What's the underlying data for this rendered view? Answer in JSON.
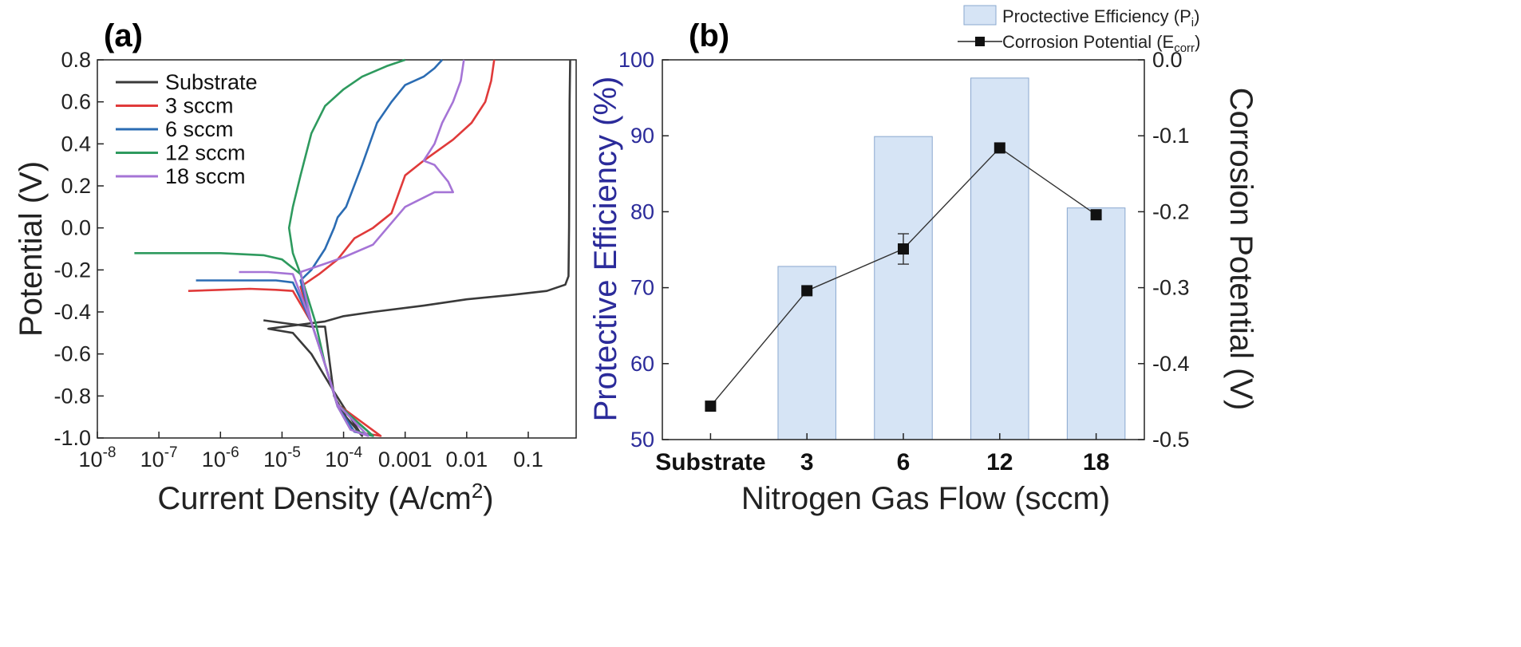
{
  "chart_data": [
    {
      "panel": "(a)",
      "type": "line",
      "xlabel": "Current Density (A/cm",
      "xlabel_sup": "2",
      "xlabel_end": ")",
      "ylabel": "Potential (V)",
      "xscale": "log",
      "xlim": [
        1e-08,
        0.6
      ],
      "ylim": [
        -1.0,
        0.8
      ],
      "xticks": [
        {
          "base": "10",
          "exp": "-8",
          "value": 1e-08
        },
        {
          "base": "10",
          "exp": "-7",
          "value": 1e-07
        },
        {
          "base": "10",
          "exp": "-6",
          "value": 1e-06
        },
        {
          "base": "10",
          "exp": "-5",
          "value": 1e-05
        },
        {
          "base": "10",
          "exp": "-4",
          "value": 0.0001
        }
      ],
      "xticks_plain": [
        {
          "label": "0.001",
          "value": 0.001
        },
        {
          "label": "0.01",
          "value": 0.01
        },
        {
          "label": "0.1",
          "value": 0.1
        }
      ],
      "yticks": [
        {
          "label": "0.8",
          "value": 0.8
        },
        {
          "label": "0.6",
          "value": 0.6
        },
        {
          "label": "0.4",
          "value": 0.4
        },
        {
          "label": "0.2",
          "value": 0.2
        },
        {
          "label": "0.0",
          "value": 0.0
        },
        {
          "label": "-0.2",
          "value": -0.2
        },
        {
          "label": "-0.4",
          "value": -0.4
        },
        {
          "label": "-0.6",
          "value": -0.6
        },
        {
          "label": "-0.8",
          "value": -0.8
        },
        {
          "label": "-1.0",
          "value": -1.0
        }
      ],
      "legend_position": "top-left",
      "series": [
        {
          "name": "Substrate",
          "color": "#3a3a3a",
          "points": [
            [
              5e-06,
              -0.44
            ],
            [
              1.2e-05,
              -0.455
            ],
            [
              3e-05,
              -0.47
            ],
            [
              5e-05,
              -0.47
            ],
            [
              7e-05,
              -0.8
            ],
            [
              0.00011,
              -0.9
            ],
            [
              0.0002,
              -0.99
            ],
            [
              7e-05,
              -0.78
            ],
            [
              3e-05,
              -0.6
            ],
            [
              1.5e-05,
              -0.5
            ],
            [
              6e-06,
              -0.48
            ],
            [
              5e-05,
              -0.445
            ],
            [
              0.0001,
              -0.42
            ],
            [
              0.0003,
              -0.4
            ],
            [
              0.002,
              -0.37
            ],
            [
              0.01,
              -0.34
            ],
            [
              0.05,
              -0.32
            ],
            [
              0.2,
              -0.3
            ],
            [
              0.4,
              -0.27
            ],
            [
              0.45,
              -0.23
            ],
            [
              0.46,
              0.0
            ],
            [
              0.47,
              0.6
            ],
            [
              0.48,
              0.8
            ]
          ]
        },
        {
          "name": "3 sccm",
          "color": "#e03a3a",
          "points": [
            [
              3e-07,
              -0.3
            ],
            [
              1e-06,
              -0.295
            ],
            [
              3e-06,
              -0.29
            ],
            [
              8e-06,
              -0.295
            ],
            [
              1.5e-05,
              -0.3
            ],
            [
              3e-05,
              -0.45
            ],
            [
              5e-05,
              -0.65
            ],
            [
              8e-05,
              -0.85
            ],
            [
              0.00015,
              -0.97
            ],
            [
              0.0004,
              -0.99
            ],
            [
              8e-05,
              -0.84
            ],
            [
              5e-05,
              -0.65
            ],
            [
              3e-05,
              -0.45
            ],
            [
              2e-05,
              -0.28
            ],
            [
              4e-05,
              -0.22
            ],
            [
              8e-05,
              -0.15
            ],
            [
              0.00015,
              -0.05
            ],
            [
              0.0003,
              0.0
            ],
            [
              0.0006,
              0.07
            ],
            [
              0.001,
              0.25
            ],
            [
              0.002,
              0.32
            ],
            [
              0.006,
              0.42
            ],
            [
              0.012,
              0.5
            ],
            [
              0.02,
              0.6
            ],
            [
              0.025,
              0.7
            ],
            [
              0.028,
              0.8
            ]
          ]
        },
        {
          "name": "6 sccm",
          "color": "#2b6cb3",
          "points": [
            [
              4e-07,
              -0.25
            ],
            [
              2e-06,
              -0.25
            ],
            [
              8e-06,
              -0.25
            ],
            [
              1.5e-05,
              -0.26
            ],
            [
              3e-05,
              -0.45
            ],
            [
              5e-05,
              -0.65
            ],
            [
              8e-05,
              -0.85
            ],
            [
              0.00015,
              -0.97
            ],
            [
              0.0003,
              -0.99
            ],
            [
              8e-05,
              -0.84
            ],
            [
              5e-05,
              -0.65
            ],
            [
              3e-05,
              -0.45
            ],
            [
              2e-05,
              -0.25
            ],
            [
              3e-05,
              -0.2
            ],
            [
              5e-05,
              -0.1
            ],
            [
              7e-05,
              0.0
            ],
            [
              8e-05,
              0.05
            ],
            [
              0.00011,
              0.1
            ],
            [
              0.0002,
              0.3
            ],
            [
              0.00035,
              0.5
            ],
            [
              0.0006,
              0.6
            ],
            [
              0.001,
              0.68
            ],
            [
              0.002,
              0.72
            ],
            [
              0.003,
              0.76
            ],
            [
              0.004,
              0.8
            ]
          ]
        },
        {
          "name": "12 sccm",
          "color": "#2e9a5e",
          "points": [
            [
              4e-08,
              -0.12
            ],
            [
              2e-07,
              -0.12
            ],
            [
              1e-06,
              -0.12
            ],
            [
              5e-06,
              -0.13
            ],
            [
              1e-05,
              -0.15
            ],
            [
              2e-05,
              -0.22
            ],
            [
              3.5e-05,
              -0.45
            ],
            [
              5e-05,
              -0.65
            ],
            [
              8e-05,
              -0.85
            ],
            [
              0.00013,
              -0.96
            ],
            [
              0.0003,
              -0.99
            ],
            [
              8e-05,
              -0.84
            ],
            [
              5e-05,
              -0.65
            ],
            [
              3.5e-05,
              -0.45
            ],
            [
              2e-05,
              -0.22
            ],
            [
              1.5e-05,
              -0.12
            ],
            [
              1.3e-05,
              0.0
            ],
            [
              1.5e-05,
              0.1
            ],
            [
              2e-05,
              0.25
            ],
            [
              3e-05,
              0.45
            ],
            [
              5e-05,
              0.58
            ],
            [
              0.0001,
              0.66
            ],
            [
              0.0002,
              0.72
            ],
            [
              0.0005,
              0.77
            ],
            [
              0.001,
              0.8
            ]
          ]
        },
        {
          "name": "18 sccm",
          "color": "#a574d6",
          "points": [
            [
              2e-06,
              -0.21
            ],
            [
              6e-06,
              -0.21
            ],
            [
              1.5e-05,
              -0.22
            ],
            [
              3e-05,
              -0.45
            ],
            [
              5e-05,
              -0.65
            ],
            [
              8e-05,
              -0.85
            ],
            [
              0.00013,
              -0.96
            ],
            [
              0.00025,
              -0.99
            ],
            [
              8e-05,
              -0.84
            ],
            [
              5e-05,
              -0.65
            ],
            [
              3e-05,
              -0.45
            ],
            [
              2e-05,
              -0.21
            ],
            [
              4e-05,
              -0.18
            ],
            [
              0.0001,
              -0.14
            ],
            [
              0.0003,
              -0.08
            ],
            [
              0.001,
              0.1
            ],
            [
              0.003,
              0.17
            ],
            [
              0.006,
              0.17
            ],
            [
              0.005,
              0.22
            ],
            [
              0.003,
              0.3
            ],
            [
              0.002,
              0.32
            ],
            [
              0.003,
              0.4
            ],
            [
              0.004,
              0.5
            ],
            [
              0.006,
              0.6
            ],
            [
              0.008,
              0.7
            ],
            [
              0.009,
              0.8
            ]
          ]
        }
      ]
    },
    {
      "panel": "(b)",
      "type": "bar",
      "xlabel": "Nitrogen Gas Flow (sccm)",
      "ylabel": "Protective Efficiency (%)",
      "y2label": "Corrosion Potential (V)",
      "categories": [
        "Substrate",
        "3",
        "6",
        "12",
        "18"
      ],
      "ylim": [
        50,
        100
      ],
      "y2lim": [
        -0.5,
        0.0
      ],
      "yticks": [
        "50",
        "60",
        "70",
        "80",
        "90",
        "100"
      ],
      "y2ticks": [
        "-0.5",
        "-0.4",
        "-0.3",
        "-0.2",
        "-0.1",
        "0.0"
      ],
      "bar_series": {
        "name": "Proctective Efficiency (P",
        "name_sub": "i",
        "name_end": ")",
        "values": [
          null,
          72.8,
          89.9,
          97.6,
          80.5
        ],
        "color": "#d6e4f5"
      },
      "line_series": {
        "name": "Corrosion Potential (E",
        "name_sub": "corr",
        "name_end": ")",
        "values": [
          -0.456,
          -0.304,
          -0.249,
          -0.116,
          -0.204
        ],
        "errors": [
          null,
          null,
          0.02,
          null,
          null
        ]
      },
      "legend_position": "top-right",
      "ylabel_color": "#2b2b9a"
    }
  ]
}
